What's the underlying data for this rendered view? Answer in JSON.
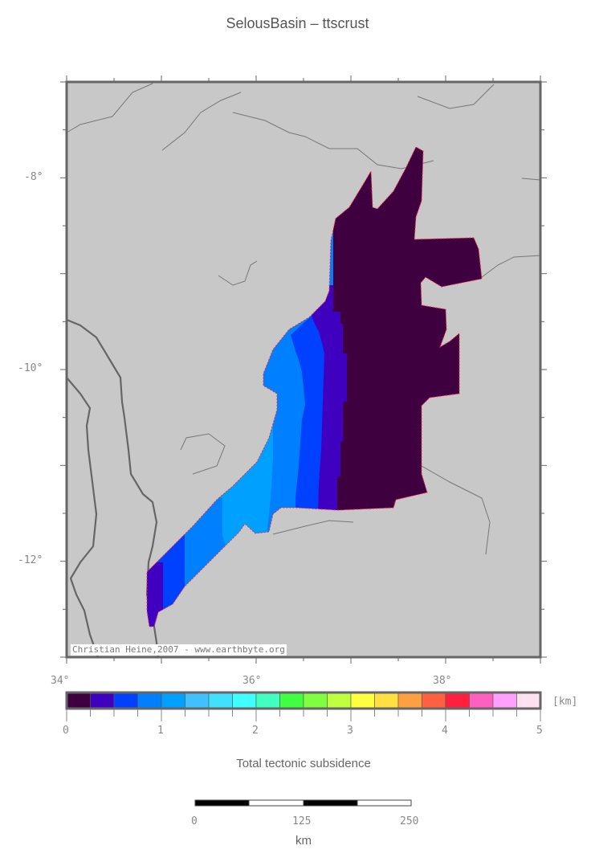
{
  "title": "SelousBasin – ttscrust",
  "map": {
    "lon_range": [
      34,
      39
    ],
    "lat_range": [
      -13,
      -7
    ],
    "x_tick_labels": [
      "34°",
      "36°",
      "38°"
    ],
    "y_tick_labels": [
      "-8°",
      "-10°",
      "-12°"
    ],
    "land_color": "#c8c8c8",
    "coastline_color": "#666666",
    "outline_color": "#ff2040",
    "attribution": "Christian Heine,2007 - www.earthbyte.org"
  },
  "colorbar": {
    "title": "Total tectonic subsidence",
    "unit": "[km]",
    "range": [
      0,
      5
    ],
    "step": 0.25,
    "tick_labels": [
      "0",
      "1",
      "2",
      "3",
      "4",
      "5"
    ],
    "colors": [
      "#3f0040",
      "#4000c0",
      "#0040ff",
      "#0080ff",
      "#00a0ff",
      "#40c0ff",
      "#40e0ff",
      "#40ffff",
      "#40ffc0",
      "#40ff40",
      "#80ff40",
      "#c0ff40",
      "#ffff40",
      "#ffe040",
      "#ffa040",
      "#ff6040",
      "#ff2040",
      "#ff60c0",
      "#ffa0ff",
      "#ffe0f0"
    ]
  },
  "scale_bar": {
    "labels": [
      "0",
      "125",
      "250"
    ],
    "unit": "km"
  }
}
